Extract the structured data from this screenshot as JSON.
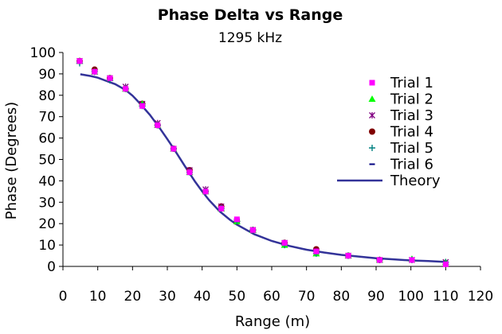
{
  "chart_data": {
    "type": "scatter",
    "title": "Phase Delta vs Range",
    "subtitle": "1295 kHz",
    "xlabel": "Range (m)",
    "ylabel": "Phase (Degrees)",
    "xlim": [
      0,
      120
    ],
    "ylim": [
      0,
      100
    ],
    "x_ticks": [
      0,
      10,
      20,
      30,
      40,
      50,
      60,
      70,
      80,
      90,
      100,
      110,
      120
    ],
    "y_ticks": [
      0,
      10,
      20,
      30,
      40,
      50,
      60,
      70,
      80,
      90,
      100
    ],
    "grid": false,
    "legend_position": "top-right",
    "series": [
      {
        "name": "Trial 1",
        "marker": "square",
        "color": "#ff00ff",
        "x": [
          4.8,
          9.1,
          13.5,
          18.0,
          22.8,
          27.2,
          31.8,
          36.4,
          41.0,
          45.5,
          50.0,
          54.6,
          63.7,
          72.8,
          82.0,
          91.0,
          100.3,
          110.0
        ],
        "y": [
          96,
          91,
          88,
          83,
          75,
          66,
          55,
          44,
          35,
          27,
          22,
          17,
          11,
          7,
          5,
          3,
          3,
          1
        ]
      },
      {
        "name": "Trial 2",
        "marker": "triangle",
        "color": "#00ff00",
        "x": [
          4.8,
          9.1,
          13.5,
          18.0,
          22.8,
          27.2,
          31.8,
          36.4,
          41.0,
          45.5,
          50.0,
          54.6,
          63.7,
          72.8,
          82.0,
          91.0,
          100.3,
          110.0
        ],
        "y": [
          96,
          91,
          88,
          83,
          76,
          66,
          55,
          44,
          35,
          27,
          21,
          17,
          10,
          6,
          5,
          3,
          3.5,
          2
        ]
      },
      {
        "name": "Trial 3",
        "marker": "asterisk",
        "color": "#800080",
        "x": [
          4.8,
          9.1,
          13.5,
          18.0,
          22.8,
          27.2,
          31.8,
          36.4,
          41.0,
          45.5,
          50.0,
          54.6,
          63.7,
          72.8,
          82.0,
          91.0,
          100.3,
          110.0
        ],
        "y": [
          96,
          91,
          88,
          84,
          76,
          67,
          55,
          45,
          36,
          28,
          21,
          17,
          11,
          7,
          5,
          3,
          3,
          2
        ]
      },
      {
        "name": "Trial 4",
        "marker": "circle",
        "color": "#800000",
        "x": [
          4.8,
          9.1,
          13.5,
          18.0,
          22.8,
          27.2,
          31.8,
          36.4,
          41.0,
          45.5,
          50.0,
          54.6,
          63.7,
          72.8,
          82.0,
          91.0
        ],
        "y": [
          96,
          92,
          88,
          83,
          76,
          66,
          55,
          45,
          35,
          28,
          21,
          17,
          11,
          8,
          5,
          3
        ]
      },
      {
        "name": "Trial 5",
        "marker": "plus",
        "color": "#008080",
        "x": [
          4.8,
          9.1,
          13.5,
          18.0,
          22.8,
          27.2,
          31.8,
          36.4,
          41.0,
          45.5,
          50.0,
          54.6,
          63.7,
          72.8,
          82.0,
          91.0,
          100.3,
          110.0
        ],
        "y": [
          95,
          91,
          87,
          83,
          75,
          66,
          55,
          44,
          35,
          27,
          21,
          17,
          10,
          6,
          5,
          3,
          3,
          2
        ]
      },
      {
        "name": "Trial 6",
        "marker": "dash",
        "color": "#000080",
        "x": [
          4.8,
          9.1,
          13.5,
          18.0,
          22.8,
          27.2,
          31.8,
          36.4,
          41.0,
          45.5,
          50.0,
          54.6,
          63.7,
          72.8,
          82.0,
          91.0,
          100.3,
          110.0
        ],
        "y": [
          96,
          91,
          88,
          83,
          76,
          66,
          55,
          44,
          35,
          27,
          22,
          17,
          11,
          7,
          5,
          3,
          3,
          2
        ]
      },
      {
        "name": "Theory",
        "marker": "line",
        "color": "#333399",
        "x": [
          5,
          8,
          10,
          12,
          15,
          18,
          20,
          22,
          25,
          28,
          30,
          32,
          35,
          38,
          40,
          42,
          45,
          48,
          50,
          55,
          60,
          65,
          70,
          75,
          80,
          85,
          90,
          95,
          100,
          105,
          110
        ],
        "y": [
          89.8,
          89,
          88.2,
          87,
          85.2,
          82.5,
          79.8,
          76.4,
          70.8,
          64.2,
          59.5,
          54.7,
          47,
          39.6,
          35.1,
          31,
          25.8,
          21.8,
          19.5,
          15,
          11.9,
          9.6,
          7.8,
          6.5,
          5.4,
          4.6,
          3.8,
          3.3,
          2.8,
          2.5,
          2.1
        ]
      }
    ]
  }
}
